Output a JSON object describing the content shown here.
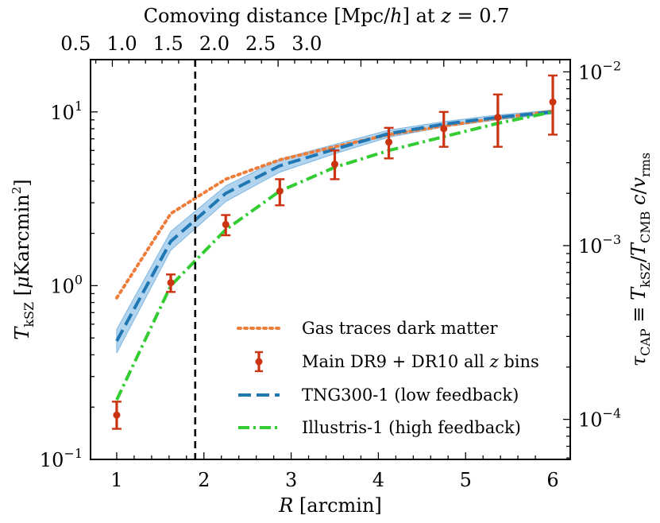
{
  "chart_data": {
    "type": "line",
    "xlabel": "R [arcmin]",
    "ylabel": "T_kSZ [μK arcmin²]",
    "top_xlabel": "Comoving distance [Mpc/h] at z = 0.7",
    "right_ylabel": "τ_CAP ≡ T_kSZ/T_CMB c/v_rms",
    "xlim": [
      0.7,
      6.2
    ],
    "ylim": [
      0.1,
      20
    ],
    "yscale": "log",
    "grid": false,
    "legend_position": "lower-right",
    "x_ticks": [
      1,
      2,
      3,
      4,
      5,
      6
    ],
    "y_ticks": [
      {
        "value": 0.1,
        "base": "10",
        "exp": "−1"
      },
      {
        "value": 1,
        "base": "10",
        "exp": "0"
      },
      {
        "value": 10,
        "base": "10",
        "exp": "1"
      }
    ],
    "top_axis": {
      "ticks": [
        {
          "label": "0.5",
          "r": 0.53
        },
        {
          "label": "1.0",
          "r": 1.06
        },
        {
          "label": "1.5",
          "r": 1.59
        },
        {
          "label": "2.0",
          "r": 2.12
        },
        {
          "label": "2.5",
          "r": 2.65
        },
        {
          "label": "3.0",
          "r": 3.18
        }
      ],
      "scale_r_per_unit": 1.9
    },
    "right_axis": {
      "scale": "log",
      "y_per_unit": 1700,
      "ticks": [
        {
          "value": 0.0001,
          "base": "10",
          "exp": "−4"
        },
        {
          "value": 0.001,
          "base": "10",
          "exp": "−3"
        },
        {
          "value": 0.01,
          "base": "10",
          "exp": "−2"
        }
      ]
    },
    "vline": {
      "x": 1.9,
      "color": "#000000",
      "style": "dashed"
    },
    "series": [
      {
        "name": "Gas traces dark matter",
        "kind": "line",
        "style": "dotted",
        "color": "#ee7c3a",
        "x": [
          1.0,
          1.62,
          2.25,
          2.87,
          3.5,
          4.12,
          4.75,
          5.37,
          6.0
        ],
        "y": [
          0.85,
          2.6,
          4.1,
          5.3,
          6.3,
          7.4,
          8.3,
          9.2,
          10.1
        ]
      },
      {
        "name": "Main DR9 + DR10 all z bins",
        "kind": "errorbar",
        "color": "#cc3311",
        "x": [
          1.0,
          1.62,
          2.25,
          2.87,
          3.5,
          4.12,
          4.75,
          5.37,
          6.0
        ],
        "y": [
          0.18,
          1.04,
          2.25,
          3.5,
          5.0,
          6.7,
          8.0,
          9.3,
          11.4
        ],
        "yerr_low": [
          0.03,
          0.12,
          0.3,
          0.6,
          0.9,
          1.3,
          1.7,
          3.0,
          4.0
        ],
        "yerr_high": [
          0.035,
          0.12,
          0.3,
          0.6,
          1.0,
          1.4,
          2.0,
          3.3,
          4.8
        ]
      },
      {
        "name": "TNG300-1 (low  feedback)",
        "kind": "line",
        "style": "dashed",
        "color": "#1f77b4",
        "band_color": "#7fb7e2",
        "x": [
          1.0,
          1.62,
          2.25,
          2.87,
          3.5,
          4.12,
          4.75,
          5.37,
          6.0
        ],
        "y": [
          0.48,
          1.8,
          3.4,
          4.9,
          6.1,
          7.5,
          8.5,
          9.3,
          10.0
        ],
        "band_low": [
          0.41,
          1.6,
          3.05,
          4.5,
          5.75,
          7.15,
          8.2,
          9.0,
          9.75
        ],
        "band_high": [
          0.56,
          2.05,
          3.75,
          5.35,
          6.5,
          7.85,
          8.8,
          9.6,
          10.25
        ]
      },
      {
        "name": "Illustris-1 (high  feedback)",
        "kind": "line",
        "style": "dashdot",
        "color": "#33cc33",
        "x": [
          1.0,
          1.62,
          2.25,
          2.87,
          3.5,
          4.12,
          4.75,
          5.37,
          6.0
        ],
        "y": [
          0.22,
          1.0,
          2.1,
          3.5,
          4.8,
          6.0,
          7.2,
          8.6,
          10.0
        ]
      }
    ]
  }
}
